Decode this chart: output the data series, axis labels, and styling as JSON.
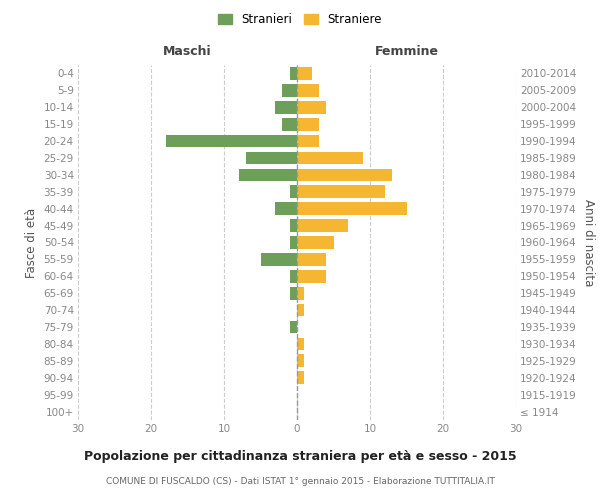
{
  "age_groups": [
    "100+",
    "95-99",
    "90-94",
    "85-89",
    "80-84",
    "75-79",
    "70-74",
    "65-69",
    "60-64",
    "55-59",
    "50-54",
    "45-49",
    "40-44",
    "35-39",
    "30-34",
    "25-29",
    "20-24",
    "15-19",
    "10-14",
    "5-9",
    "0-4"
  ],
  "birth_years": [
    "≤ 1914",
    "1915-1919",
    "1920-1924",
    "1925-1929",
    "1930-1934",
    "1935-1939",
    "1940-1944",
    "1945-1949",
    "1950-1954",
    "1955-1959",
    "1960-1964",
    "1965-1969",
    "1970-1974",
    "1975-1979",
    "1980-1984",
    "1985-1989",
    "1990-1994",
    "1995-1999",
    "2000-2004",
    "2005-2009",
    "2010-2014"
  ],
  "males": [
    0,
    0,
    0,
    0,
    0,
    1,
    0,
    1,
    1,
    5,
    1,
    1,
    3,
    1,
    8,
    7,
    18,
    2,
    3,
    2,
    1
  ],
  "females": [
    0,
    0,
    1,
    1,
    1,
    0,
    1,
    1,
    4,
    4,
    5,
    7,
    15,
    12,
    13,
    9,
    3,
    3,
    4,
    3,
    2
  ],
  "male_color": "#6d9e5a",
  "female_color": "#f5b731",
  "title": "Popolazione per cittadinanza straniera per età e sesso - 2015",
  "subtitle": "COMUNE DI FUSCALDO (CS) - Dati ISTAT 1° gennaio 2015 - Elaborazione TUTTITALIA.IT",
  "ylabel_left": "Fasce di età",
  "ylabel_right": "Anni di nascita",
  "xlim": 30,
  "legend_stranieri": "Stranieri",
  "legend_straniere": "Straniere",
  "header_maschi": "Maschi",
  "header_femmine": "Femmine",
  "bg_color": "#ffffff",
  "grid_color": "#cccccc",
  "axis_label_color": "#555555",
  "tick_label_color": "#888888"
}
